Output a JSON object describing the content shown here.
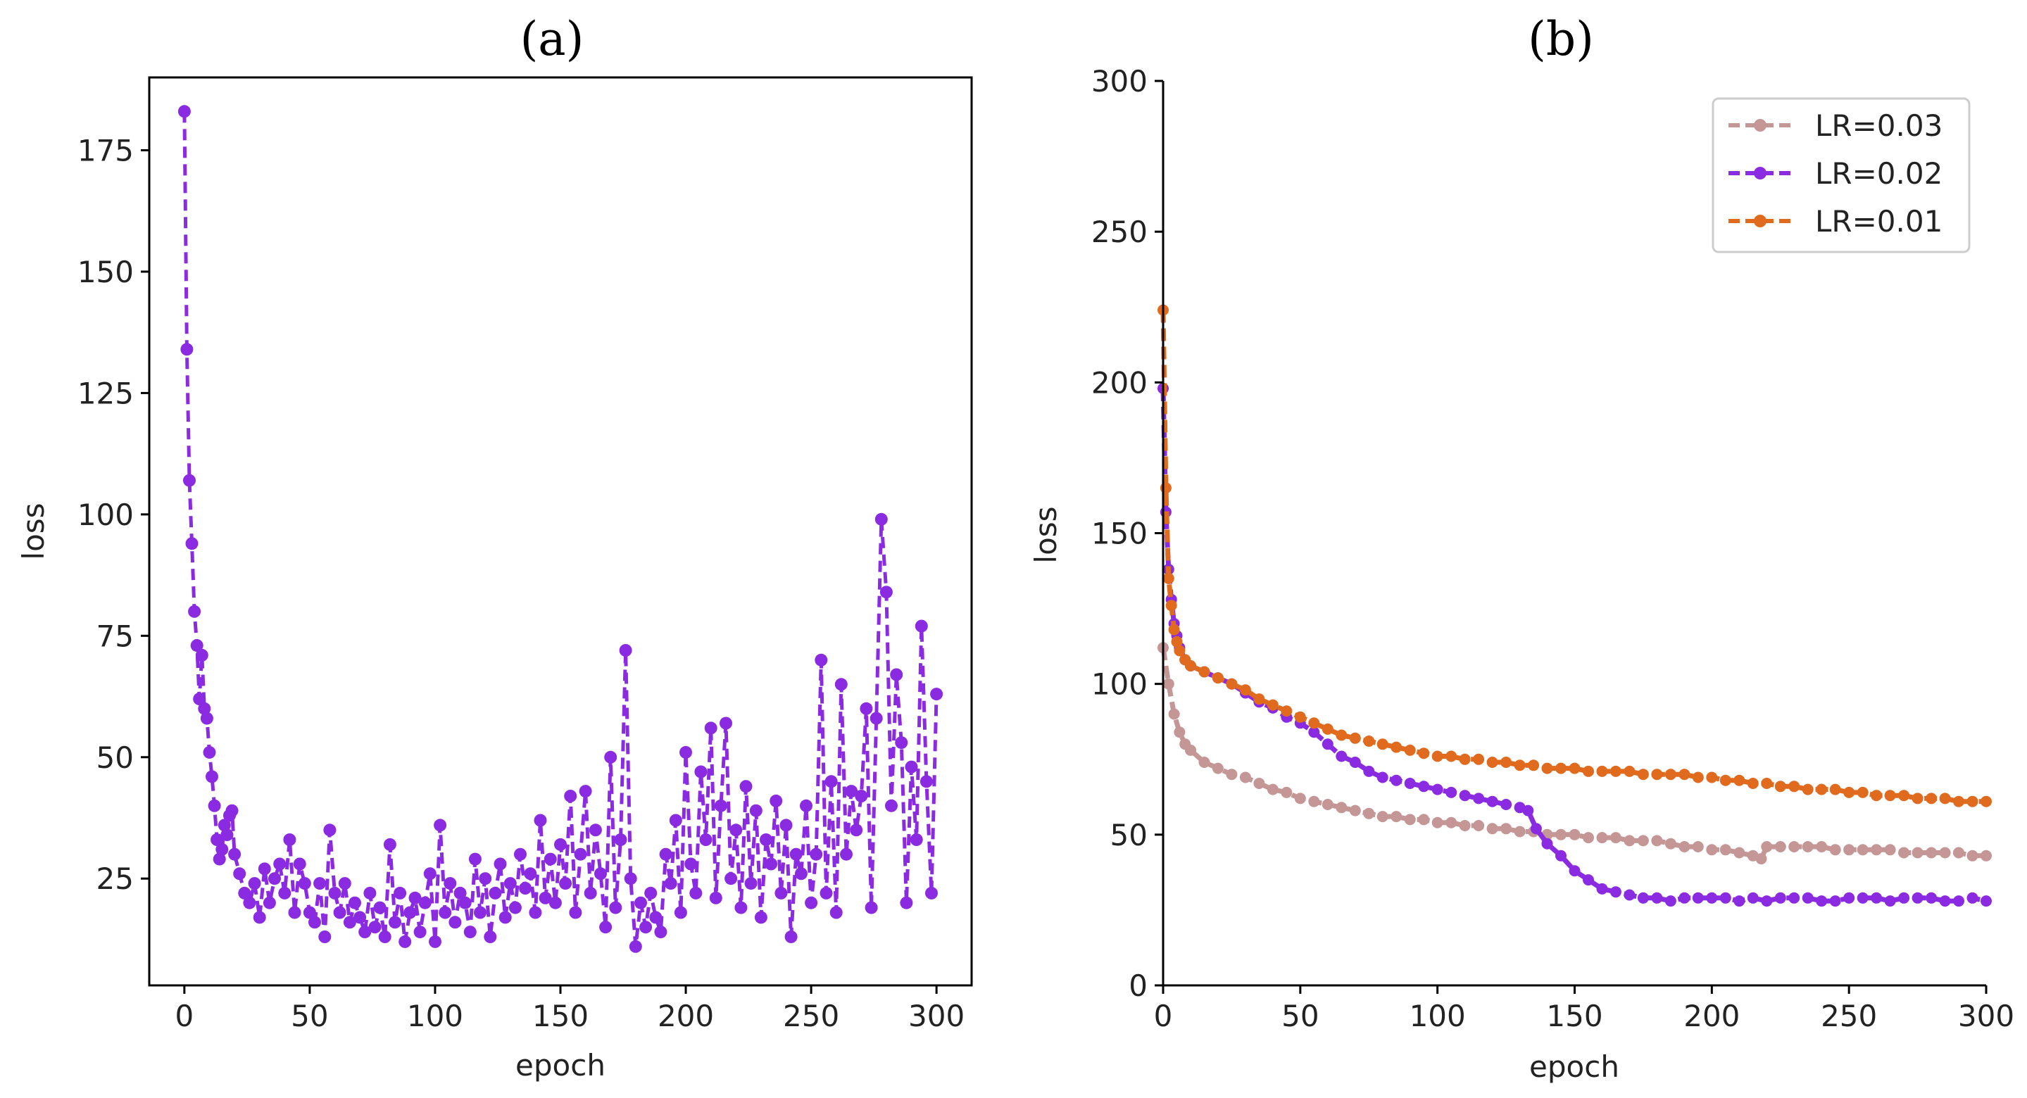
{
  "chart_data": [
    {
      "type": "line",
      "panel": "(a)",
      "title": "(a)",
      "xlabel": "epoch",
      "ylabel": "loss",
      "xlim": [
        -14,
        314
      ],
      "ylim": [
        3,
        190
      ],
      "xticks": [
        0,
        50,
        100,
        150,
        200,
        250,
        300
      ],
      "yticks": [
        25,
        50,
        75,
        100,
        125,
        150,
        175
      ],
      "grid": false,
      "series": [
        {
          "name": "loss",
          "color": "#8a2be2",
          "linestyle": "dashed",
          "marker": "circle",
          "x": [
            0,
            1,
            2,
            3,
            4,
            5,
            6,
            7,
            8,
            9,
            10,
            11,
            12,
            13,
            14,
            15,
            16,
            17,
            18,
            19,
            20,
            22,
            24,
            26,
            28,
            30,
            32,
            34,
            36,
            38,
            40,
            42,
            44,
            46,
            48,
            50,
            52,
            54,
            56,
            58,
            60,
            62,
            64,
            66,
            68,
            70,
            72,
            74,
            76,
            78,
            80,
            82,
            84,
            86,
            88,
            90,
            92,
            94,
            96,
            98,
            100,
            102,
            104,
            106,
            108,
            110,
            112,
            114,
            116,
            118,
            120,
            122,
            124,
            126,
            128,
            130,
            132,
            134,
            136,
            138,
            140,
            142,
            144,
            146,
            148,
            150,
            152,
            154,
            156,
            158,
            160,
            162,
            164,
            166,
            168,
            170,
            172,
            174,
            176,
            178,
            180,
            182,
            184,
            186,
            188,
            190,
            192,
            194,
            196,
            198,
            200,
            202,
            204,
            206,
            208,
            210,
            212,
            214,
            216,
            218,
            220,
            222,
            224,
            226,
            228,
            230,
            232,
            234,
            236,
            238,
            240,
            242,
            244,
            246,
            248,
            250,
            252,
            254,
            256,
            258,
            260,
            262,
            264,
            266,
            268,
            270,
            272,
            274,
            276,
            278,
            280,
            282,
            284,
            286,
            288,
            290,
            292,
            294,
            296,
            298,
            300
          ],
          "y": [
            183,
            134,
            107,
            94,
            80,
            73,
            62,
            71,
            60,
            58,
            51,
            46,
            40,
            33,
            29,
            31,
            36,
            34,
            38,
            39,
            30,
            26,
            22,
            20,
            24,
            17,
            27,
            20,
            25,
            28,
            22,
            33,
            18,
            28,
            24,
            18,
            16,
            24,
            13,
            35,
            22,
            18,
            24,
            16,
            20,
            17,
            14,
            22,
            15,
            19,
            13,
            32,
            16,
            22,
            12,
            18,
            21,
            14,
            20,
            26,
            12,
            36,
            18,
            24,
            16,
            22,
            20,
            14,
            29,
            18,
            25,
            13,
            22,
            28,
            17,
            24,
            19,
            30,
            23,
            26,
            18,
            37,
            21,
            29,
            20,
            32,
            24,
            42,
            18,
            30,
            43,
            22,
            35,
            26,
            15,
            50,
            19,
            33,
            72,
            25,
            11,
            20,
            15,
            22,
            17,
            14,
            30,
            24,
            37,
            18,
            51,
            28,
            22,
            47,
            33,
            56,
            21,
            40,
            57,
            25,
            35,
            19,
            44,
            24,
            39,
            17,
            33,
            28,
            41,
            22,
            36,
            13,
            30,
            26,
            40,
            20,
            30,
            70,
            22,
            45,
            18,
            65,
            30,
            43,
            35,
            42,
            60,
            19,
            58,
            99,
            84,
            40,
            67,
            53,
            20,
            48,
            33,
            77,
            45,
            22,
            63
          ]
        }
      ]
    },
    {
      "type": "line",
      "panel": "(b)",
      "title": "(b)",
      "xlabel": "epoch",
      "ylabel": "loss",
      "xlim": [
        0,
        300
      ],
      "ylim": [
        0,
        300
      ],
      "xticks": [
        0,
        50,
        100,
        150,
        200,
        250,
        300
      ],
      "yticks": [
        0,
        50,
        100,
        150,
        200,
        250,
        300
      ],
      "grid": false,
      "legend": {
        "location": "top-right"
      },
      "series": [
        {
          "name": "LR=0.03",
          "label": "LR=0.03",
          "color": "#c49696",
          "linestyle": "dashed",
          "marker": "circle",
          "x": [
            0,
            2,
            4,
            6,
            8,
            10,
            15,
            20,
            25,
            30,
            35,
            40,
            45,
            50,
            55,
            60,
            65,
            70,
            75,
            80,
            85,
            90,
            95,
            100,
            105,
            110,
            115,
            120,
            125,
            130,
            135,
            140,
            145,
            150,
            155,
            160,
            165,
            170,
            175,
            180,
            185,
            190,
            195,
            200,
            205,
            210,
            215,
            218,
            220,
            225,
            230,
            235,
            240,
            245,
            250,
            255,
            260,
            265,
            270,
            275,
            280,
            285,
            290,
            295,
            300
          ],
          "y": [
            112,
            100,
            90,
            84,
            80,
            78,
            74,
            72,
            70,
            69,
            67,
            65,
            64,
            62,
            61,
            60,
            59,
            58,
            57,
            56,
            56,
            55,
            55,
            54,
            54,
            53,
            53,
            52,
            52,
            51,
            51,
            50,
            50,
            50,
            49,
            49,
            49,
            48,
            48,
            48,
            47,
            46,
            46,
            45,
            45,
            44,
            43,
            42,
            46,
            46,
            46,
            46,
            46,
            45,
            45,
            45,
            45,
            45,
            44,
            44,
            44,
            44,
            44,
            43,
            43
          ]
        },
        {
          "name": "LR=0.02",
          "label": "LR=0.02",
          "color": "#8a2be2",
          "linestyle": "dashed",
          "marker": "circle",
          "x": [
            0,
            1,
            2,
            3,
            4,
            5,
            6,
            8,
            10,
            15,
            20,
            25,
            30,
            35,
            40,
            45,
            50,
            55,
            60,
            65,
            70,
            75,
            80,
            85,
            90,
            95,
            100,
            105,
            110,
            115,
            120,
            125,
            130,
            133,
            136,
            140,
            145,
            150,
            155,
            160,
            165,
            170,
            175,
            180,
            185,
            190,
            195,
            200,
            205,
            210,
            215,
            220,
            225,
            230,
            235,
            240,
            245,
            250,
            255,
            260,
            265,
            270,
            275,
            280,
            285,
            290,
            295,
            300
          ],
          "y": [
            198,
            157,
            138,
            128,
            120,
            116,
            112,
            108,
            106,
            104,
            102,
            100,
            97,
            94,
            92,
            89,
            87,
            84,
            80,
            76,
            74,
            71,
            69,
            68,
            67,
            66,
            65,
            64,
            63,
            62,
            61,
            60,
            59,
            58,
            52,
            47,
            43,
            38,
            35,
            32,
            31,
            30,
            29,
            29,
            28,
            29,
            29,
            29,
            29,
            28,
            29,
            28,
            29,
            29,
            29,
            28,
            28,
            29,
            29,
            29,
            28,
            29,
            29,
            29,
            28,
            28,
            29,
            28
          ]
        },
        {
          "name": "LR=0.01",
          "label": "LR=0.01",
          "color": "#e06a1e",
          "linestyle": "dashed",
          "marker": "circle",
          "x": [
            0,
            1,
            2,
            3,
            4,
            5,
            6,
            8,
            10,
            15,
            20,
            25,
            30,
            35,
            40,
            45,
            50,
            55,
            60,
            65,
            70,
            75,
            80,
            85,
            90,
            95,
            100,
            105,
            110,
            115,
            120,
            125,
            130,
            135,
            140,
            145,
            150,
            155,
            160,
            165,
            170,
            175,
            180,
            185,
            190,
            195,
            200,
            205,
            210,
            215,
            220,
            225,
            230,
            235,
            240,
            245,
            250,
            255,
            260,
            265,
            270,
            275,
            280,
            285,
            290,
            295,
            300
          ],
          "y": [
            224,
            165,
            135,
            126,
            118,
            114,
            111,
            108,
            106,
            104,
            102,
            100,
            98,
            95,
            93,
            91,
            89,
            87,
            85,
            83,
            82,
            81,
            80,
            79,
            78,
            77,
            76,
            76,
            75,
            75,
            74,
            74,
            73,
            73,
            72,
            72,
            72,
            71,
            71,
            71,
            71,
            70,
            70,
            70,
            70,
            69,
            69,
            68,
            68,
            67,
            67,
            66,
            66,
            65,
            65,
            65,
            64,
            64,
            63,
            63,
            63,
            62,
            62,
            62,
            61,
            61,
            61
          ]
        }
      ]
    }
  ]
}
